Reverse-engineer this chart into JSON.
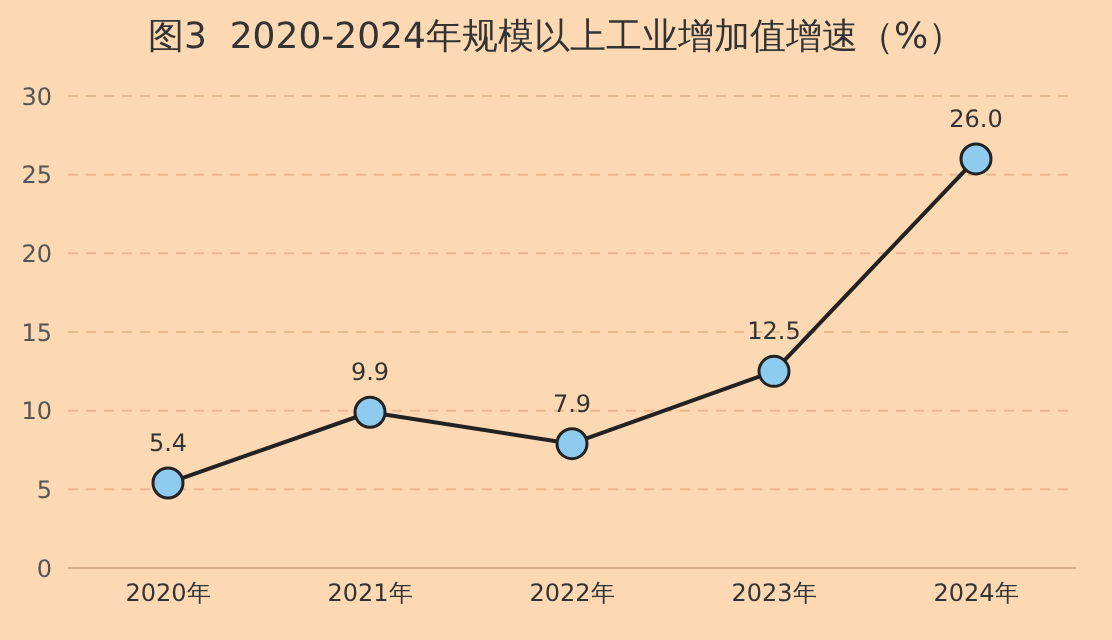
{
  "chart_data": {
    "type": "line",
    "title": "图3  2020-2024年规模以上工业增加值增速（%）",
    "categories": [
      "2020年",
      "2021年",
      "2022年",
      "2023年",
      "2024年"
    ],
    "series": [
      {
        "color": "#222222",
        "values": [
          5.4,
          9.9,
          7.9,
          12.5,
          26.0
        ],
        "value_labels": [
          "5.4",
          "9.9",
          "7.9",
          "12.5",
          "26.0"
        ]
      }
    ],
    "ylim": [
      0,
      30
    ],
    "yticks": [
      0,
      5,
      10,
      15,
      20,
      25,
      30
    ],
    "grid": "y",
    "marker": "circle",
    "line_style": "solid"
  }
}
